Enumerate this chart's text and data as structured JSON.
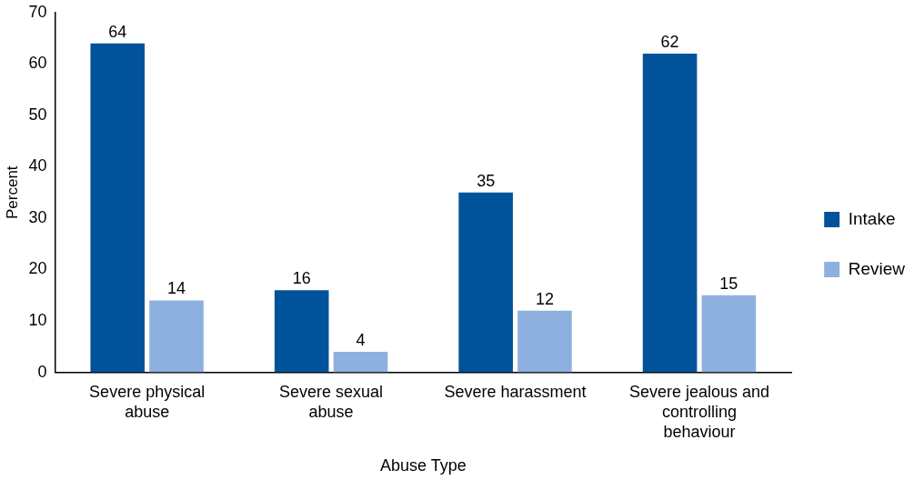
{
  "chart_data": {
    "type": "bar",
    "xlabel": "Abuse Type",
    "ylabel": "Percent",
    "categories": [
      "Severe physical abuse",
      "Severe sexual abuse",
      "Severe harassment",
      "Severe jealous and controlling behaviour"
    ],
    "series": [
      {
        "name": "Intake",
        "color": "#00529b",
        "values": [
          64,
          16,
          35,
          62
        ]
      },
      {
        "name": "Review",
        "color": "#8eb0de",
        "values": [
          14,
          4,
          12,
          15
        ]
      }
    ],
    "ylim": [
      0,
      70
    ],
    "yticks": [
      0,
      10,
      20,
      30,
      40,
      50,
      60,
      70
    ],
    "grid": false,
    "legend": "right",
    "data_labels": true
  }
}
